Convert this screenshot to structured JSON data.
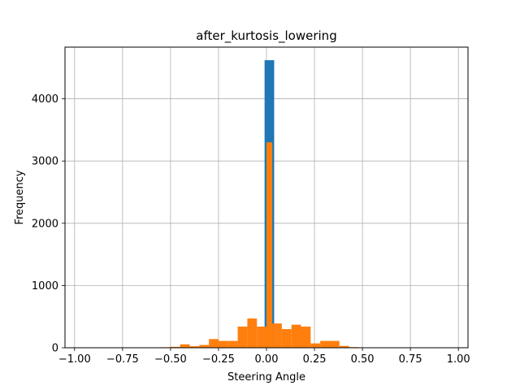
{
  "chart_data": {
    "type": "bar",
    "title": "after_kurtosis_lowering",
    "xlabel": "Steering Angle",
    "ylabel": "Frequency",
    "xlim": [
      -1.05,
      1.05
    ],
    "ylim": [
      0,
      4830
    ],
    "grid": true,
    "x_ticks": [
      {
        "value": -1.0,
        "label": "−1.00"
      },
      {
        "value": -0.75,
        "label": "−0.75"
      },
      {
        "value": -0.5,
        "label": "−0.50"
      },
      {
        "value": -0.25,
        "label": "−0.25"
      },
      {
        "value": 0.0,
        "label": "0.00"
      },
      {
        "value": 0.25,
        "label": "0.25"
      },
      {
        "value": 0.5,
        "label": "0.50"
      },
      {
        "value": 0.75,
        "label": "0.75"
      },
      {
        "value": 1.0,
        "label": "1.00"
      }
    ],
    "y_ticks": [
      {
        "value": 0,
        "label": "0"
      },
      {
        "value": 1000,
        "label": "1000"
      },
      {
        "value": 2000,
        "label": "2000"
      },
      {
        "value": 3000,
        "label": "3000"
      },
      {
        "value": 4000,
        "label": "4000"
      }
    ],
    "series": [
      {
        "color": "#1f77b4",
        "bins": [
          {
            "x0": -0.01,
            "x1": 0.04,
            "y": 4620
          }
        ]
      },
      {
        "color": "#ff7f0e",
        "bins": [
          {
            "x0": -0.55,
            "x1": -0.5,
            "y": 8
          },
          {
            "x0": -0.5,
            "x1": -0.45,
            "y": 15
          },
          {
            "x0": -0.45,
            "x1": -0.4,
            "y": 55
          },
          {
            "x0": -0.4,
            "x1": -0.35,
            "y": 25
          },
          {
            "x0": -0.35,
            "x1": -0.3,
            "y": 45
          },
          {
            "x0": -0.3,
            "x1": -0.25,
            "y": 140
          },
          {
            "x0": -0.25,
            "x1": -0.2,
            "y": 110
          },
          {
            "x0": -0.2,
            "x1": -0.15,
            "y": 110
          },
          {
            "x0": -0.15,
            "x1": -0.1,
            "y": 340
          },
          {
            "x0": -0.1,
            "x1": -0.05,
            "y": 470
          },
          {
            "x0": -0.05,
            "x1": 0.0,
            "y": 340
          },
          {
            "x0": 0.0,
            "x1": 0.03,
            "y": 3300
          },
          {
            "x0": 0.03,
            "x1": 0.08,
            "y": 390
          },
          {
            "x0": 0.08,
            "x1": 0.13,
            "y": 300
          },
          {
            "x0": 0.13,
            "x1": 0.18,
            "y": 370
          },
          {
            "x0": 0.18,
            "x1": 0.23,
            "y": 340
          },
          {
            "x0": 0.23,
            "x1": 0.28,
            "y": 70
          },
          {
            "x0": 0.28,
            "x1": 0.33,
            "y": 110
          },
          {
            "x0": 0.33,
            "x1": 0.38,
            "y": 110
          },
          {
            "x0": 0.38,
            "x1": 0.43,
            "y": 30
          },
          {
            "x0": 0.43,
            "x1": 0.48,
            "y": 10
          },
          {
            "x0": 0.48,
            "x1": 0.53,
            "y": 5
          }
        ]
      }
    ]
  }
}
